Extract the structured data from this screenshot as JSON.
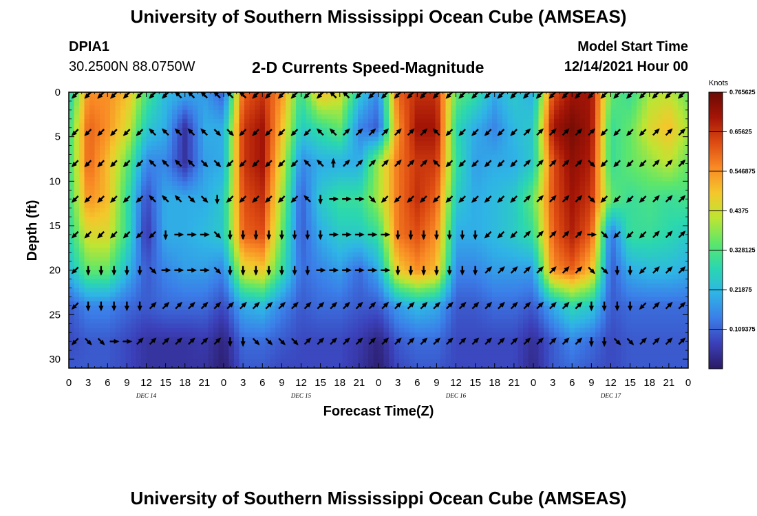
{
  "header": {
    "title": "University of Southern Mississippi Ocean Cube (AMSEAS)",
    "station": "DPIA1",
    "coordinates": "30.2500N  88.0750W",
    "main_title": "2-D Currents Speed-Magnitude",
    "model_start_label": "Model Start Time",
    "model_start_value": "12/14/2021 Hour 00"
  },
  "footer": {
    "title": "University of Southern Mississippi Ocean Cube (AMSEAS)"
  },
  "colors": {
    "palette": [
      "#2b1a64",
      "#3b3fb8",
      "#3b7de8",
      "#2fb4e6",
      "#2ad7b0",
      "#5ee66a",
      "#bde533",
      "#f4c72c",
      "#f98a25",
      "#dd4a12",
      "#a51506",
      "#6a0a05"
    ],
    "arrow": "#000000"
  },
  "chart_data": {
    "type": "heatmap",
    "title": "2-D Currents Speed-Magnitude",
    "xlabel": "Forecast Time(Z)",
    "ylabel": "Depth (ft)",
    "x_range_hours": [
      0,
      96
    ],
    "ylim": [
      0,
      31
    ],
    "x_tick_labels": [
      "0",
      "3",
      "6",
      "9",
      "12",
      "15",
      "18",
      "21",
      "0",
      "3",
      "6",
      "9",
      "12",
      "15",
      "18",
      "21",
      "0",
      "3",
      "6",
      "9",
      "12",
      "15",
      "18",
      "21",
      "0",
      "3",
      "6",
      "9",
      "12",
      "15",
      "18",
      "21",
      "0"
    ],
    "day_labels": [
      "DEC 14",
      "DEC 15",
      "DEC 16",
      "DEC 17"
    ],
    "y_ticks": [
      0,
      5,
      10,
      15,
      20,
      25,
      30
    ],
    "colorbar": {
      "title": "Knots",
      "range": [
        0,
        0.765625
      ],
      "tick_labels": [
        "0.765625",
        "0.65625",
        "0.546875",
        "0.4375",
        "0.328125",
        "0.21875",
        "0.109375"
      ],
      "tick_values": [
        0.765625,
        0.65625,
        0.546875,
        0.4375,
        0.328125,
        0.21875,
        0.109375
      ]
    },
    "speed_grid": {
      "units": "knots",
      "x_hours": [
        0,
        3,
        6,
        9,
        12,
        15,
        18,
        21,
        24,
        27,
        30,
        33,
        36,
        39,
        42,
        45,
        48,
        51,
        54,
        57,
        60,
        63,
        66,
        69,
        72,
        75,
        78,
        81,
        84,
        87,
        90,
        93,
        96
      ],
      "depths_ft": [
        0,
        4,
        8,
        12,
        16,
        20,
        24,
        28,
        31
      ],
      "values": [
        [
          0.25,
          0.55,
          0.55,
          0.5,
          0.33,
          0.22,
          0.2,
          0.18,
          0.1,
          0.6,
          0.65,
          0.55,
          0.3,
          0.5,
          0.45,
          0.25,
          0.15,
          0.6,
          0.66,
          0.66,
          0.35,
          0.3,
          0.2,
          0.25,
          0.2,
          0.62,
          0.7,
          0.7,
          0.35,
          0.3,
          0.4,
          0.42,
          0.35
        ],
        [
          0.3,
          0.6,
          0.55,
          0.45,
          0.25,
          0.2,
          0.05,
          0.2,
          0.2,
          0.65,
          0.7,
          0.5,
          0.25,
          0.3,
          0.35,
          0.15,
          0.1,
          0.55,
          0.7,
          0.7,
          0.28,
          0.2,
          0.15,
          0.22,
          0.25,
          0.7,
          0.75,
          0.7,
          0.3,
          0.35,
          0.45,
          0.5,
          0.4
        ],
        [
          0.3,
          0.6,
          0.5,
          0.35,
          0.15,
          0.15,
          0.05,
          0.18,
          0.2,
          0.65,
          0.7,
          0.45,
          0.15,
          0.2,
          0.2,
          0.2,
          0.4,
          0.58,
          0.65,
          0.65,
          0.3,
          0.18,
          0.2,
          0.2,
          0.25,
          0.62,
          0.72,
          0.68,
          0.3,
          0.35,
          0.38,
          0.42,
          0.35
        ],
        [
          0.3,
          0.55,
          0.5,
          0.3,
          0.08,
          0.2,
          0.2,
          0.2,
          0.25,
          0.62,
          0.66,
          0.4,
          0.1,
          0.25,
          0.3,
          0.3,
          0.4,
          0.58,
          0.66,
          0.6,
          0.25,
          0.2,
          0.22,
          0.25,
          0.35,
          0.62,
          0.7,
          0.65,
          0.35,
          0.3,
          0.32,
          0.3,
          0.32
        ],
        [
          0.28,
          0.45,
          0.45,
          0.3,
          0.05,
          0.2,
          0.2,
          0.22,
          0.25,
          0.6,
          0.62,
          0.35,
          0.1,
          0.2,
          0.25,
          0.25,
          0.3,
          0.58,
          0.62,
          0.55,
          0.2,
          0.2,
          0.22,
          0.25,
          0.3,
          0.6,
          0.68,
          0.6,
          0.12,
          0.3,
          0.3,
          0.28,
          0.25
        ],
        [
          0.22,
          0.35,
          0.35,
          0.22,
          0.1,
          0.15,
          0.18,
          0.18,
          0.15,
          0.45,
          0.48,
          0.3,
          0.12,
          0.15,
          0.18,
          0.12,
          0.2,
          0.48,
          0.55,
          0.5,
          0.15,
          0.15,
          0.18,
          0.18,
          0.18,
          0.55,
          0.6,
          0.5,
          0.1,
          0.2,
          0.22,
          0.22,
          0.2
        ],
        [
          0.1,
          0.15,
          0.15,
          0.12,
          0.1,
          0.12,
          0.12,
          0.12,
          0.08,
          0.2,
          0.22,
          0.15,
          0.1,
          0.12,
          0.12,
          0.1,
          0.1,
          0.18,
          0.22,
          0.2,
          0.1,
          0.1,
          0.12,
          0.12,
          0.1,
          0.2,
          0.28,
          0.25,
          0.1,
          0.12,
          0.12,
          0.12,
          0.12
        ],
        [
          0.08,
          0.1,
          0.1,
          0.08,
          0.05,
          0.05,
          0.05,
          0.06,
          0.02,
          0.12,
          0.12,
          0.1,
          0.08,
          0.08,
          0.08,
          0.06,
          0.02,
          0.1,
          0.12,
          0.12,
          0.08,
          0.08,
          0.08,
          0.08,
          0.04,
          0.1,
          0.15,
          0.12,
          0.08,
          0.1,
          0.1,
          0.1,
          0.1
        ],
        [
          0.1,
          0.1,
          0.1,
          0.08,
          0.05,
          0.05,
          0.05,
          0.05,
          0.01,
          0.1,
          0.1,
          0.08,
          0.08,
          0.08,
          0.08,
          0.05,
          0.01,
          0.08,
          0.1,
          0.1,
          0.08,
          0.08,
          0.08,
          0.08,
          0.03,
          0.1,
          0.12,
          0.1,
          0.08,
          0.1,
          0.1,
          0.1,
          0.1
        ]
      ]
    },
    "vectors": {
      "depths_ft": [
        0,
        4.5,
        8,
        12,
        16,
        20,
        24,
        28
      ],
      "x_hours": [
        1,
        3,
        5,
        7,
        9,
        11,
        13,
        15,
        17,
        19,
        21,
        23,
        25,
        27,
        29,
        31,
        33,
        35,
        37,
        39,
        41,
        43,
        45,
        47,
        49,
        51,
        53,
        55,
        57,
        59,
        61,
        63,
        65,
        67,
        69,
        71,
        73,
        75,
        77,
        79,
        81,
        83,
        85,
        87,
        89,
        91,
        93,
        95
      ],
      "direction_deg": [
        [
          225,
          225,
          225,
          225,
          225,
          225,
          225,
          225,
          315,
          315,
          315,
          315,
          315,
          315,
          225,
          225,
          225,
          225,
          225,
          225,
          315,
          315,
          225,
          225,
          225,
          225,
          225,
          225,
          225,
          225,
          225,
          225,
          225,
          225,
          225,
          225,
          225,
          225,
          225,
          225,
          225,
          225,
          225,
          225,
          225,
          225,
          225,
          225
        ],
        [
          225,
          225,
          225,
          225,
          225,
          225,
          315,
          315,
          315,
          315,
          315,
          135,
          135,
          225,
          225,
          225,
          225,
          225,
          225,
          315,
          315,
          45,
          45,
          45,
          45,
          45,
          45,
          45,
          315,
          225,
          225,
          225,
          225,
          225,
          225,
          45,
          45,
          45,
          45,
          45,
          45,
          225,
          225,
          225,
          225,
          45,
          45,
          45
        ],
        [
          225,
          225,
          225,
          225,
          225,
          225,
          315,
          315,
          315,
          315,
          135,
          135,
          225,
          225,
          225,
          225,
          225,
          225,
          315,
          315,
          0,
          45,
          45,
          45,
          45,
          45,
          45,
          45,
          315,
          225,
          225,
          225,
          225,
          225,
          225,
          45,
          45,
          45,
          45,
          45,
          135,
          225,
          225,
          225,
          225,
          45,
          45,
          45
        ],
        [
          225,
          225,
          225,
          225,
          225,
          225,
          315,
          315,
          315,
          135,
          135,
          180,
          225,
          225,
          225,
          225,
          225,
          225,
          315,
          180,
          90,
          90,
          90,
          135,
          225,
          225,
          225,
          225,
          225,
          225,
          225,
          225,
          225,
          225,
          225,
          45,
          45,
          45,
          45,
          45,
          135,
          225,
          225,
          225,
          225,
          45,
          45,
          45
        ],
        [
          225,
          225,
          225,
          225,
          225,
          225,
          225,
          180,
          90,
          90,
          90,
          135,
          180,
          180,
          180,
          180,
          180,
          180,
          180,
          180,
          90,
          90,
          90,
          90,
          90,
          180,
          180,
          180,
          180,
          180,
          180,
          180,
          225,
          225,
          225,
          45,
          45,
          45,
          45,
          45,
          90,
          135,
          225,
          225,
          225,
          45,
          45,
          45
        ],
        [
          225,
          180,
          180,
          180,
          180,
          180,
          135,
          90,
          90,
          90,
          90,
          135,
          180,
          180,
          180,
          180,
          180,
          180,
          180,
          90,
          90,
          90,
          90,
          90,
          90,
          180,
          180,
          180,
          180,
          180,
          180,
          180,
          45,
          45,
          45,
          45,
          45,
          45,
          45,
          45,
          135,
          135,
          180,
          180,
          225,
          45,
          45,
          45
        ],
        [
          225,
          180,
          180,
          180,
          180,
          180,
          45,
          45,
          45,
          45,
          45,
          45,
          45,
          45,
          45,
          45,
          45,
          45,
          45,
          45,
          45,
          45,
          45,
          45,
          45,
          45,
          45,
          45,
          45,
          45,
          45,
          45,
          45,
          45,
          45,
          45,
          45,
          45,
          45,
          45,
          180,
          180,
          180,
          180,
          225,
          45,
          45,
          45
        ],
        [
          225,
          135,
          135,
          90,
          90,
          45,
          45,
          45,
          45,
          45,
          45,
          45,
          180,
          180,
          135,
          135,
          135,
          135,
          45,
          45,
          45,
          45,
          45,
          45,
          45,
          45,
          45,
          45,
          45,
          45,
          45,
          45,
          45,
          45,
          45,
          45,
          45,
          45,
          45,
          45,
          180,
          180,
          135,
          135,
          45,
          45,
          45,
          45
        ]
      ]
    }
  }
}
